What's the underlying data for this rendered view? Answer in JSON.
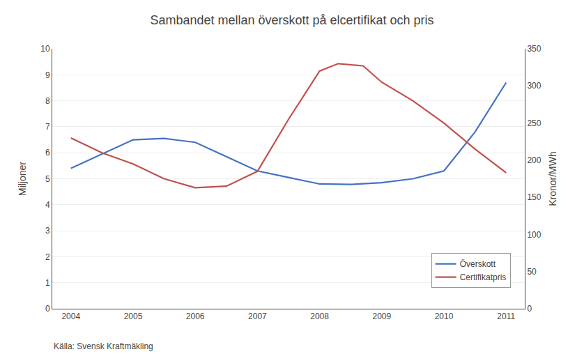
{
  "chart_data": {
    "type": "line",
    "title": "Sambandet mellan överskott på elcertifikat och pris",
    "ylabel": "Miljoner",
    "y2label": "Kronor/MWh",
    "annotations": [
      "Källa: Svensk Kraftmäkling"
    ],
    "series": [
      {
        "name": "Överskott",
        "color": "#4472C4",
        "x": [
          2004,
          2004.5,
          2005,
          2005.5,
          2006,
          2006.5,
          2007,
          2007.5,
          2008,
          2008.5,
          2009,
          2009.5,
          2010,
          2010.5,
          2011
        ],
        "values": [
          5.4,
          5.95,
          6.5,
          6.55,
          6.4,
          5.85,
          5.3,
          5.05,
          4.8,
          4.78,
          4.85,
          5.0,
          5.3,
          6.8,
          8.7
        ]
      },
      {
        "name": "Certifikatpris",
        "color": "#C0504D",
        "axis": "y2",
        "x": [
          2004,
          2004.5,
          2005,
          2005.5,
          2006,
          2006.5,
          2007,
          2007.5,
          2008,
          2008.3,
          2008.7,
          2009,
          2009.5,
          2010,
          2010.5,
          2011
        ],
        "values": [
          230,
          210,
          195,
          175,
          163,
          165,
          185,
          255,
          320,
          330,
          327,
          305,
          280,
          250,
          215,
          183
        ]
      }
    ],
    "xlim": [
      2003.7,
      2011.3
    ],
    "xticks": [
      2004,
      2005,
      2006,
      2007,
      2008,
      2009,
      2010,
      2011
    ],
    "ylim": [
      0,
      10
    ],
    "yticks": [
      0,
      1,
      2,
      3,
      4,
      5,
      6,
      7,
      8,
      9,
      10
    ],
    "y2lim": [
      0,
      350
    ],
    "y2ticks": [
      0,
      50,
      100,
      150,
      200,
      250,
      300,
      350
    ],
    "grid": "y",
    "legend": "lower right"
  }
}
